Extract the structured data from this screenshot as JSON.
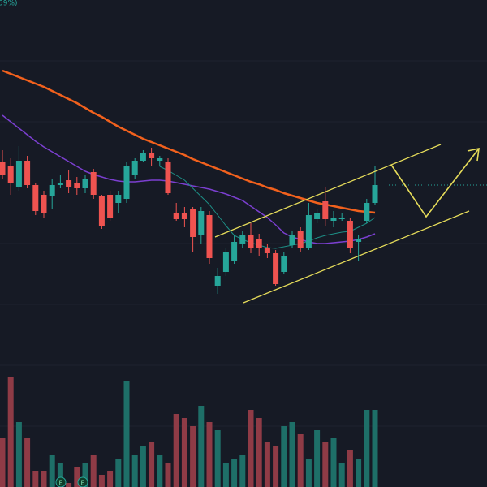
{
  "chart_data": {
    "type": "candlestick",
    "header_fragment": "59%)",
    "events": [
      "E",
      "E"
    ],
    "ylim": [
      0,
      600
    ],
    "volume_lim": [
      0,
      600
    ],
    "up_color": "#26a69a",
    "down_color": "#ef5350",
    "volume_up_color": "#1e6f68",
    "volume_down_color": "#8f3b46",
    "open": [
      400,
      395,
      370,
      402,
      372,
      360,
      358,
      372,
      378,
      375,
      368,
      388,
      358,
      360,
      350,
      355,
      385,
      402,
      412,
      402,
      400,
      338,
      338,
      342,
      310,
      335,
      248,
      265,
      278,
      300,
      310,
      305,
      295,
      288,
      265,
      298,
      315,
      295,
      330,
      352,
      328,
      330,
      328,
      302,
      328,
      350
    ],
    "high": [
      415,
      405,
      420,
      408,
      375,
      365,
      380,
      385,
      390,
      382,
      385,
      392,
      360,
      365,
      365,
      400,
      405,
      415,
      418,
      408,
      405,
      350,
      345,
      345,
      345,
      340,
      270,
      295,
      310,
      315,
      325,
      312,
      300,
      292,
      290,
      315,
      320,
      350,
      342,
      370,
      340,
      338,
      332,
      310,
      355,
      395
    ],
    "low": [
      380,
      360,
      365,
      368,
      335,
      332,
      342,
      368,
      362,
      360,
      362,
      355,
      318,
      328,
      338,
      350,
      380,
      400,
      395,
      395,
      360,
      328,
      320,
      290,
      300,
      275,
      238,
      260,
      275,
      295,
      288,
      285,
      282,
      248,
      262,
      295,
      290,
      292,
      325,
      322,
      320,
      328,
      288,
      278,
      325,
      348
    ],
    "close": [
      385,
      375,
      402,
      372,
      340,
      338,
      372,
      375,
      370,
      368,
      380,
      360,
      322,
      332,
      360,
      395,
      402,
      412,
      405,
      405,
      362,
      330,
      330,
      308,
      340,
      282,
      260,
      290,
      302,
      310,
      295,
      295,
      288,
      250,
      285,
      310,
      295,
      335,
      338,
      330,
      332,
      332,
      295,
      305,
      350,
      372
    ],
    "volumes": [
      60,
      135,
      80,
      60,
      20,
      20,
      40,
      30,
      5,
      25,
      30,
      40,
      15,
      20,
      35,
      130,
      40,
      50,
      55,
      40,
      30,
      90,
      85,
      75,
      100,
      80,
      70,
      30,
      35,
      40,
      95,
      85,
      55,
      50,
      75,
      80,
      65,
      35,
      70,
      55,
      60,
      30,
      45,
      35,
      95,
      95
    ],
    "moving_averages": [
      {
        "color": "#f2611d",
        "width": 2.5,
        "values": [
          513,
          509,
          505,
          501,
          497,
          493,
          488,
          483,
          478,
          473,
          467,
          461,
          456,
          450,
          444,
          439,
          434,
          429,
          425,
          421,
          417,
          413,
          409,
          404,
          400,
          396,
          392,
          388,
          384,
          380,
          376,
          373,
          369,
          366,
          362,
          359,
          356,
          353,
          350,
          348,
          346,
          344,
          342,
          340,
          339,
          338
        ]
      },
      {
        "color": "#7b3fd0",
        "width": 1.5,
        "values": [
          458,
          450,
          442,
          434,
          426,
          419,
          413,
          407,
          401,
          395,
          389,
          385,
          382,
          379,
          377,
          376,
          376,
          377,
          378,
          378,
          377,
          375,
          373,
          371,
          369,
          367,
          364,
          361,
          357,
          353,
          346,
          339,
          332,
          323,
          313,
          308,
          305,
          302,
          300,
          300,
          301,
          302,
          303,
          305,
          308,
          312
        ]
      },
      {
        "color": "#1d8f86",
        "width": 1,
        "values": [
          null,
          null,
          null,
          null,
          null,
          null,
          null,
          null,
          null,
          null,
          null,
          null,
          null,
          null,
          null,
          null,
          null,
          null,
          null,
          395,
          390,
          384,
          378,
          368,
          358,
          348,
          335,
          322,
          310,
          305,
          301,
          298,
          295,
          294,
          296,
          298,
          300,
          303,
          307,
          310,
          312,
          314,
          315,
          320,
          325,
          332
        ]
      }
    ]
  }
}
